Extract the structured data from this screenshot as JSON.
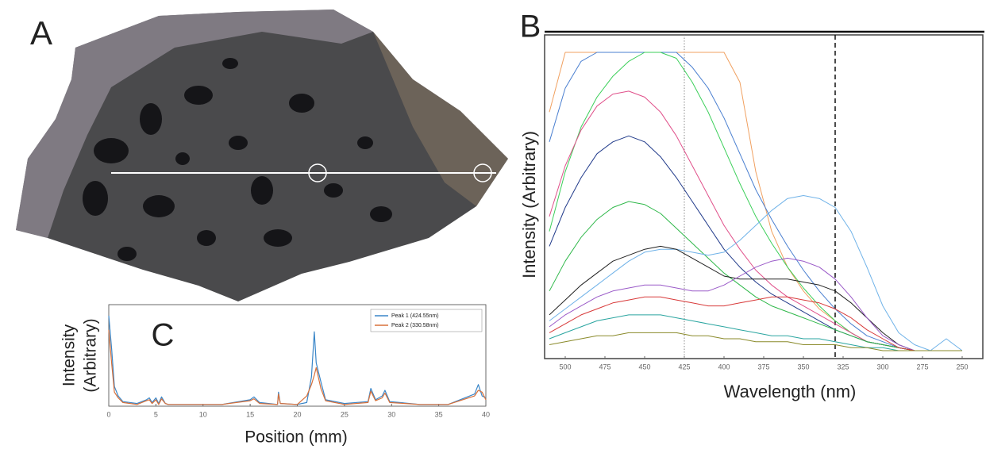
{
  "panels": {
    "photo": {
      "label": "A"
    }
  },
  "chart_data": [
    {
      "type": "line",
      "panel_label": "B",
      "xlabel": "Wavelength  (nm)",
      "ylabel": "Intensity  (Arbitrary)",
      "x": [
        510,
        500,
        490,
        480,
        470,
        460,
        450,
        440,
        430,
        420,
        410,
        400,
        390,
        380,
        370,
        360,
        350,
        340,
        330,
        320,
        310,
        300,
        290,
        280,
        270,
        260,
        250
      ],
      "xlim": [
        513,
        237
      ],
      "xticks": [
        500,
        475,
        450,
        425,
        400,
        375,
        350,
        325,
        300,
        275,
        250
      ],
      "ylim": [
        0,
        100
      ],
      "reference_lines": [
        {
          "x": 425,
          "style": "dotted"
        },
        {
          "x": 330,
          "style": "dashed"
        }
      ],
      "series": [
        {
          "color": "#f0a060",
          "values": [
            80,
            100,
            100,
            100,
            100,
            100,
            100,
            100,
            100,
            100,
            100,
            100,
            90,
            60,
            40,
            28,
            20,
            14,
            10,
            6,
            3,
            2,
            1,
            0,
            0,
            0,
            0
          ]
        },
        {
          "color": "#4a7fd0",
          "values": [
            70,
            88,
            97,
            100,
            100,
            100,
            100,
            100,
            100,
            95,
            88,
            78,
            66,
            54,
            44,
            35,
            27,
            20,
            14,
            9,
            5,
            3,
            1,
            0,
            0,
            0,
            0
          ]
        },
        {
          "color": "#3ccf5a",
          "values": [
            40,
            60,
            75,
            85,
            92,
            97,
            100,
            100,
            98,
            90,
            80,
            68,
            56,
            45,
            36,
            28,
            21,
            15,
            10,
            6,
            3,
            2,
            1,
            0,
            0,
            0,
            0
          ]
        },
        {
          "color": "#e0508a",
          "values": [
            45,
            62,
            74,
            82,
            86,
            87,
            85,
            80,
            72,
            62,
            52,
            42,
            34,
            27,
            22,
            18,
            15,
            12,
            9,
            6,
            3,
            2,
            1,
            0,
            0,
            0,
            0
          ]
        },
        {
          "color": "#203a8a",
          "values": [
            35,
            48,
            58,
            66,
            70,
            72,
            70,
            65,
            58,
            50,
            42,
            34,
            28,
            23,
            19,
            16,
            13,
            10,
            7,
            5,
            3,
            2,
            1,
            0,
            0,
            0,
            0
          ]
        },
        {
          "color": "#2fb84a",
          "values": [
            20,
            30,
            38,
            44,
            48,
            50,
            49,
            46,
            41,
            36,
            31,
            26,
            22,
            18,
            15,
            13,
            11,
            9,
            7,
            5,
            3,
            2,
            1,
            0,
            0,
            0,
            0
          ]
        },
        {
          "color": "#6fb2e8",
          "values": [
            10,
            14,
            18,
            22,
            26,
            30,
            33,
            34,
            34,
            33,
            32,
            33,
            37,
            42,
            47,
            51,
            52,
            51,
            48,
            40,
            28,
            15,
            6,
            2,
            0,
            4,
            0
          ]
        },
        {
          "color": "#222222",
          "values": [
            12,
            17,
            22,
            26,
            30,
            32,
            34,
            35,
            34,
            31,
            28,
            25,
            24,
            24,
            24,
            24,
            23,
            22,
            20,
            16,
            11,
            6,
            2,
            0,
            0,
            0,
            0
          ]
        },
        {
          "color": "#9a5ac8",
          "values": [
            8,
            12,
            15,
            18,
            20,
            21,
            22,
            22,
            21,
            20,
            20,
            22,
            25,
            28,
            30,
            31,
            30,
            28,
            24,
            18,
            11,
            5,
            2,
            0,
            0,
            0,
            0
          ]
        },
        {
          "color": "#d83a3a",
          "values": [
            6,
            9,
            12,
            14,
            16,
            17,
            18,
            18,
            17,
            16,
            15,
            15,
            16,
            17,
            18,
            18,
            17,
            16,
            14,
            11,
            7,
            4,
            1,
            0,
            0,
            0,
            0
          ]
        },
        {
          "color": "#2aa5a0",
          "values": [
            4,
            6,
            8,
            10,
            11,
            12,
            12,
            12,
            11,
            10,
            9,
            8,
            7,
            6,
            5,
            5,
            4,
            4,
            3,
            2,
            1,
            1,
            0,
            0,
            0,
            0,
            0
          ]
        },
        {
          "color": "#8a8a2a",
          "values": [
            2,
            3,
            4,
            5,
            5,
            6,
            6,
            6,
            6,
            5,
            5,
            4,
            4,
            3,
            3,
            3,
            2,
            2,
            2,
            1,
            1,
            0,
            0,
            0,
            0,
            0,
            0
          ]
        }
      ]
    },
    {
      "type": "line",
      "panel_label": "C",
      "xlabel": "Position (mm)",
      "ylabel_lines": [
        "Intensity",
        "(Arbitrary)"
      ],
      "x": [
        0,
        0.3,
        0.6,
        1,
        1.5,
        3,
        4,
        4.3,
        4.6,
        5,
        5.3,
        5.6,
        6,
        6.3,
        8,
        12,
        15,
        15.4,
        16,
        17.9,
        18,
        18.2,
        20,
        21,
        21.5,
        21.8,
        22,
        22.5,
        23,
        25,
        27.5,
        27.8,
        28.3,
        29,
        29.3,
        29.8,
        33,
        36,
        38.8,
        39.2,
        39.6,
        40
      ],
      "xlim": [
        0,
        40
      ],
      "xticks": [
        0,
        5,
        10,
        15,
        20,
        25,
        30,
        35,
        40
      ],
      "ylim": [
        0,
        100
      ],
      "legend": "upper right",
      "series": [
        {
          "name": "Peak 1 (424.55nm)",
          "color": "#3a86c8",
          "values": [
            95,
            60,
            20,
            10,
            4,
            2,
            6,
            8,
            3,
            8,
            2,
            9,
            2,
            1,
            1,
            1,
            6,
            9,
            3,
            1,
            14,
            2,
            1,
            3,
            30,
            78,
            45,
            25,
            6,
            2,
            4,
            18,
            6,
            10,
            16,
            4,
            1,
            1,
            12,
            22,
            10,
            8
          ]
        },
        {
          "name": "Peak 2 (330.58nm)",
          "color": "#d8703a",
          "values": [
            80,
            45,
            14,
            8,
            3,
            1,
            5,
            6,
            2,
            6,
            1,
            7,
            2,
            1,
            1,
            1,
            5,
            7,
            2,
            1,
            12,
            2,
            1,
            10,
            22,
            32,
            40,
            18,
            5,
            1,
            3,
            15,
            5,
            8,
            13,
            3,
            1,
            1,
            10,
            16,
            14,
            6
          ]
        }
      ]
    }
  ]
}
